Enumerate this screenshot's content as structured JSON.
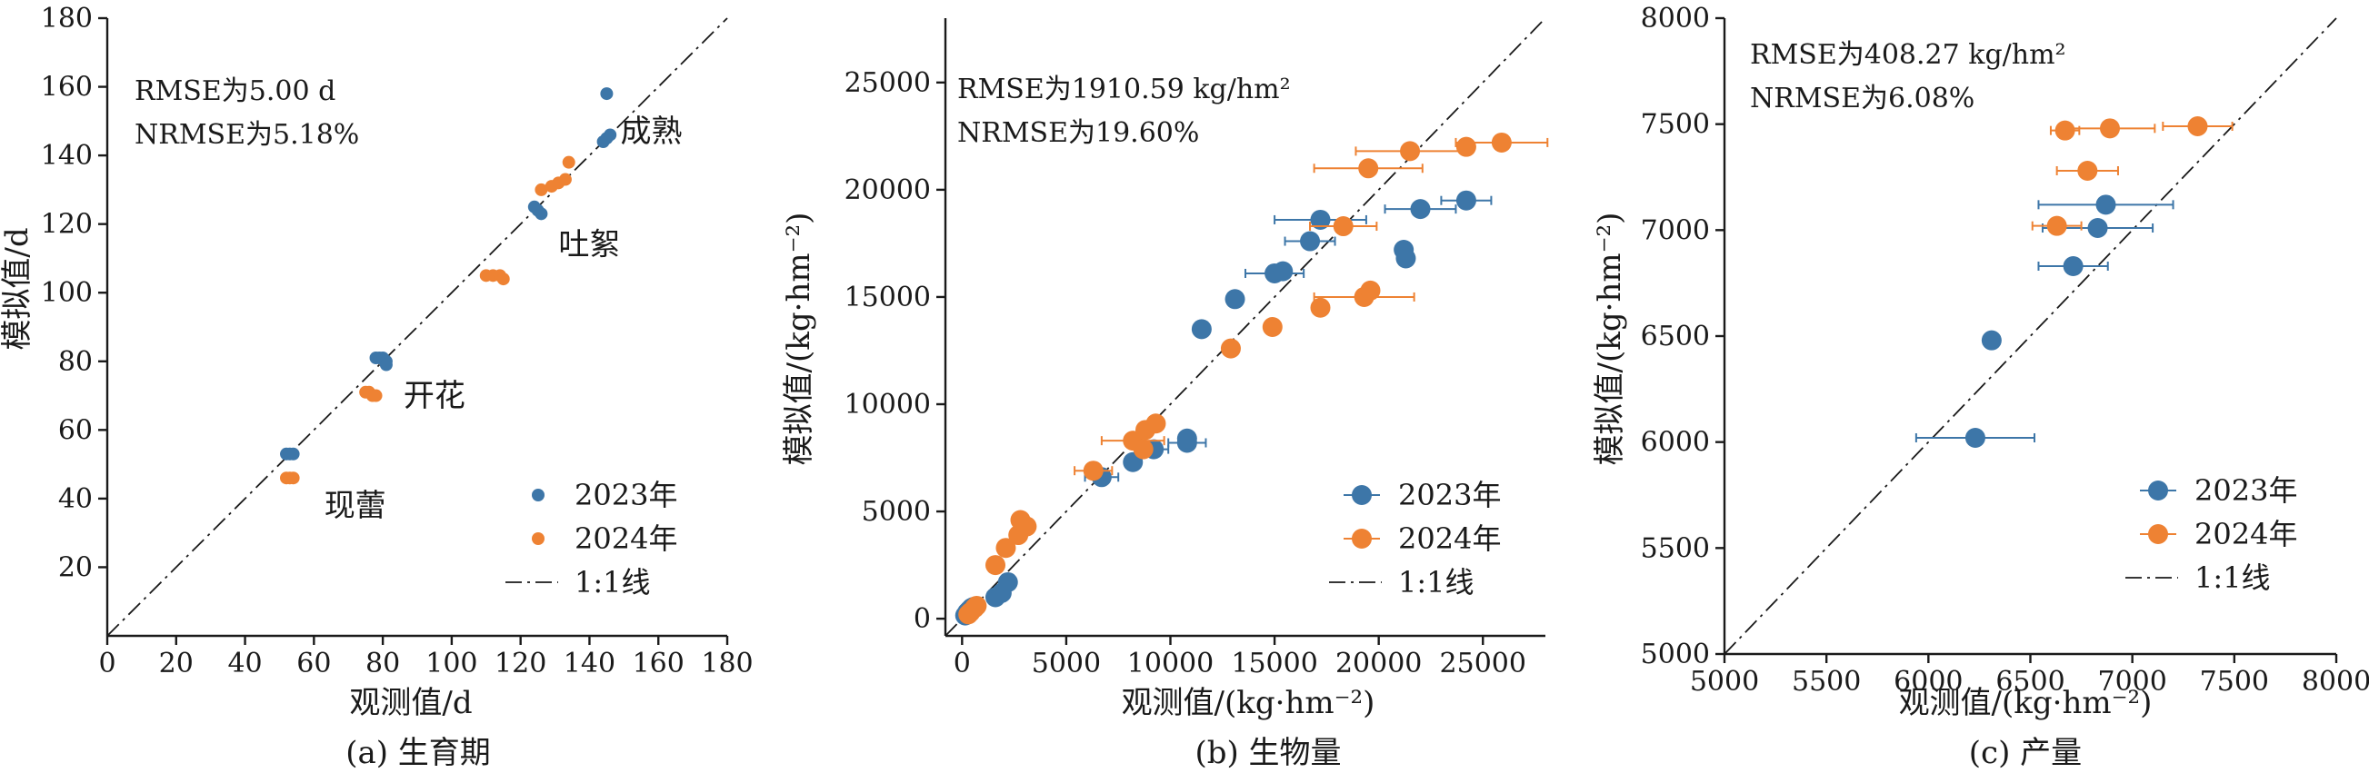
{
  "colors": {
    "s2023": "#3d76a8",
    "s2024": "#ee8233",
    "axis": "#1a1a1a"
  },
  "chart_data": [
    {
      "id": "a",
      "type": "scatter",
      "caption": "(a) 生育期",
      "xlabel": "观测值/d",
      "ylabel": "模拟值/d",
      "xlim": [
        0,
        180
      ],
      "ylim": [
        0,
        180
      ],
      "xticks": [
        0,
        20,
        40,
        60,
        80,
        100,
        120,
        140,
        160,
        180
      ],
      "yticks": [
        20,
        40,
        60,
        80,
        100,
        120,
        140,
        160,
        180
      ],
      "annotations": [
        "RMSE为5.00 d",
        "NRMSE为5.18%"
      ],
      "stage_labels": [
        {
          "text": "现蕾",
          "x": 63,
          "y": 35
        },
        {
          "text": "开花",
          "x": 86,
          "y": 67
        },
        {
          "text": "吐絮",
          "x": 131,
          "y": 111
        },
        {
          "text": "成熟",
          "x": 149,
          "y": 144
        }
      ],
      "legend": [
        {
          "label": "2023年",
          "kind": "dot",
          "series": 0
        },
        {
          "label": "2024年",
          "kind": "dot",
          "series": 1
        },
        {
          "label": "1:1线",
          "kind": "line"
        }
      ],
      "reference_line": "1:1",
      "marker_size": "small",
      "series": [
        {
          "name": "2023年",
          "points": [
            [
              52,
              53
            ],
            [
              53,
              53
            ],
            [
              54,
              53
            ],
            [
              78,
              81
            ],
            [
              79,
              81
            ],
            [
              80,
              81
            ],
            [
              81,
              80
            ],
            [
              81,
              79
            ],
            [
              124,
              125
            ],
            [
              125,
              124
            ],
            [
              126,
              123
            ],
            [
              144,
              144
            ],
            [
              145,
              145
            ],
            [
              146,
              146
            ],
            [
              145,
              158
            ]
          ],
          "xerr": []
        },
        {
          "name": "2024年",
          "points": [
            [
              52,
              46
            ],
            [
              53,
              46
            ],
            [
              54,
              46
            ],
            [
              75,
              71
            ],
            [
              76,
              71
            ],
            [
              77,
              70
            ],
            [
              78,
              70
            ],
            [
              110,
              105
            ],
            [
              112,
              105
            ],
            [
              114,
              105
            ],
            [
              115,
              104
            ],
            [
              126,
              130
            ],
            [
              129,
              131
            ],
            [
              131,
              132
            ],
            [
              133,
              133
            ],
            [
              134,
              138
            ]
          ],
          "xerr": []
        }
      ]
    },
    {
      "id": "b",
      "type": "scatter",
      "caption": "(b) 生物量",
      "xlabel": "观测值/(kg·hm⁻²)",
      "ylabel": "模拟值/(kg·hm⁻²)",
      "xlim": [
        -800,
        28000
      ],
      "ylim": [
        -800,
        28000
      ],
      "xticks": [
        0,
        5000,
        10000,
        15000,
        20000,
        25000
      ],
      "yticks": [
        0,
        5000,
        10000,
        15000,
        20000,
        25000
      ],
      "annotations": [
        "RMSE为1910.59 kg/hm²",
        "NRMSE为19.60%"
      ],
      "legend": [
        {
          "label": "2023年",
          "kind": "dot",
          "series": 0
        },
        {
          "label": "2024年",
          "kind": "dot",
          "series": 1
        },
        {
          "label": "1:1线",
          "kind": "line"
        }
      ],
      "reference_line": "1:1",
      "marker_size": "large",
      "series": [
        {
          "name": "2023年",
          "points": [
            [
              150,
              150
            ],
            [
              250,
              300
            ],
            [
              350,
              400
            ],
            [
              450,
              500
            ],
            [
              550,
              550
            ],
            [
              1600,
              1000
            ],
            [
              1900,
              1200
            ],
            [
              2200,
              1700
            ],
            [
              6700,
              6600
            ],
            [
              8200,
              7300
            ],
            [
              9200,
              7900
            ],
            [
              10800,
              8200
            ],
            [
              10800,
              8400
            ],
            [
              11500,
              13500
            ],
            [
              13100,
              14900
            ],
            [
              15000,
              16100
            ],
            [
              15400,
              16200
            ],
            [
              16700,
              17600
            ],
            [
              17200,
              18600
            ],
            [
              21200,
              17200
            ],
            [
              21300,
              16800
            ],
            [
              22000,
              19100
            ],
            [
              24200,
              19500
            ]
          ],
          "xerr": [
            0,
            0,
            0,
            0,
            0,
            0,
            0,
            0,
            800,
            0,
            700,
            900,
            0,
            0,
            0,
            1400,
            0,
            1200,
            2200,
            0,
            0,
            1700,
            1200
          ]
        },
        {
          "name": "2024年",
          "points": [
            [
              300,
              200
            ],
            [
              400,
              300
            ],
            [
              600,
              500
            ],
            [
              700,
              600
            ],
            [
              1600,
              2500
            ],
            [
              2100,
              3300
            ],
            [
              2700,
              3900
            ],
            [
              2800,
              4600
            ],
            [
              3100,
              4300
            ],
            [
              6300,
              6900
            ],
            [
              8200,
              8300
            ],
            [
              8700,
              7900
            ],
            [
              8800,
              8800
            ],
            [
              9300,
              9100
            ],
            [
              12900,
              12600
            ],
            [
              14900,
              13600
            ],
            [
              17200,
              14500
            ],
            [
              19300,
              15000
            ],
            [
              19600,
              15300
            ],
            [
              18300,
              18300
            ],
            [
              19500,
              21000
            ],
            [
              21500,
              21800
            ],
            [
              24200,
              22000
            ],
            [
              25900,
              22200
            ]
          ],
          "xerr": [
            0,
            0,
            0,
            0,
            0,
            0,
            0,
            0,
            0,
            900,
            1500,
            0,
            0,
            0,
            0,
            0,
            0,
            2400,
            0,
            1600,
            2600,
            2600,
            0,
            2200
          ]
        }
      ]
    },
    {
      "id": "c",
      "type": "scatter",
      "caption": "(c) 产量",
      "xlabel": "观测值/(kg·hm⁻²)",
      "ylabel": "模拟值/(kg·hm⁻²)",
      "xlim": [
        5000,
        8000
      ],
      "ylim": [
        5000,
        8000
      ],
      "xticks": [
        5000,
        5500,
        6000,
        6500,
        7000,
        7500,
        8000
      ],
      "yticks": [
        5000,
        5500,
        6000,
        6500,
        7000,
        7500,
        8000
      ],
      "annotations": [
        "RMSE为408.27 kg/hm²",
        "NRMSE为6.08%"
      ],
      "legend": [
        {
          "label": "2023年",
          "kind": "dot",
          "series": 0
        },
        {
          "label": "2024年",
          "kind": "dot",
          "series": 1
        },
        {
          "label": "1:1线",
          "kind": "line"
        }
      ],
      "reference_line": "1:1",
      "marker_size": "large",
      "series": [
        {
          "name": "2023年",
          "points": [
            [
              6230,
              6020
            ],
            [
              6310,
              6480
            ],
            [
              6710,
              6830
            ],
            [
              6830,
              7010
            ],
            [
              6870,
              7120
            ]
          ],
          "xerr": [
            290,
            40,
            170,
            270,
            330
          ]
        },
        {
          "name": "2024年",
          "points": [
            [
              6630,
              7020
            ],
            [
              6670,
              7470
            ],
            [
              6780,
              7280
            ],
            [
              6890,
              7480
            ],
            [
              7320,
              7490
            ]
          ],
          "xerr": [
            120,
            70,
            150,
            220,
            170
          ]
        }
      ]
    }
  ]
}
